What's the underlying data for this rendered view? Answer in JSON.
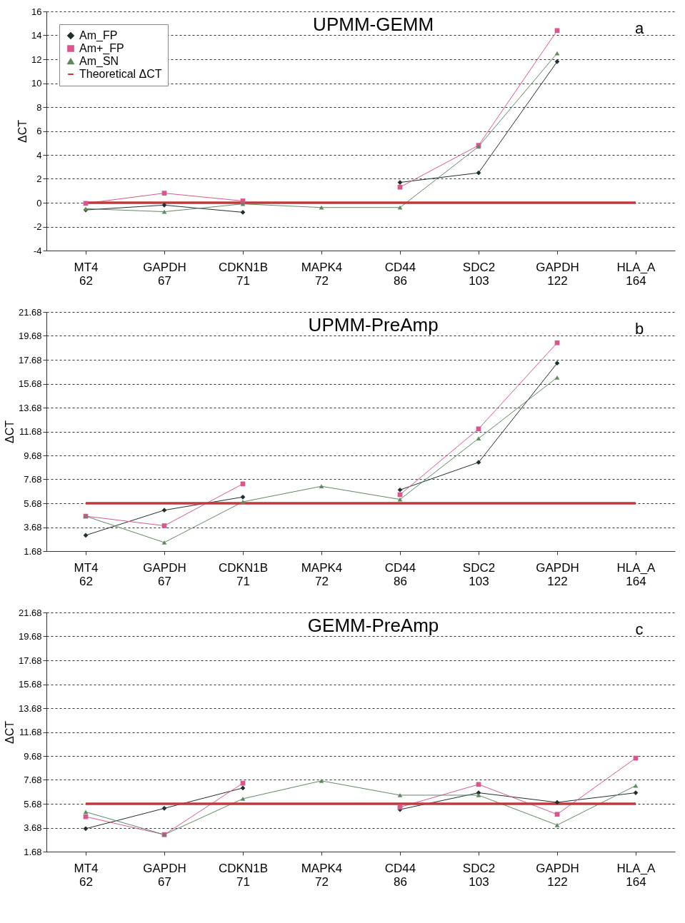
{
  "chart_data": [
    {
      "type": "line",
      "title": "UPMM-GEMM",
      "annotations": [
        "a"
      ],
      "ylabel": "ΔCT",
      "categories": [
        "MT4\n62",
        "GAPDH\n67",
        "CDKN1B\n71",
        "MAPK4\n72",
        "CD44\n86",
        "SDC2\n103",
        "GAPDH\n122",
        "HLA_A\n164"
      ],
      "ylim": [
        -4,
        16
      ],
      "yticks": [
        -4,
        -2,
        0,
        2,
        4,
        6,
        8,
        10,
        12,
        14,
        16
      ],
      "grid": "y",
      "legend": "top left",
      "series": [
        {
          "name": "Am_FP",
          "color": "#1f2f2f",
          "marker": "diamond",
          "values": [
            -0.6,
            -0.2,
            -0.8,
            null,
            1.7,
            2.5,
            11.8,
            null
          ]
        },
        {
          "name": "Am+_FP",
          "color": "#d9578f",
          "marker": "square",
          "values": [
            -0.05,
            0.8,
            0.15,
            null,
            1.3,
            4.8,
            14.4,
            null
          ]
        },
        {
          "name": "Am_SN",
          "color": "#5f8a5f",
          "marker": "triangle",
          "values": [
            -0.5,
            -0.75,
            -0.1,
            -0.4,
            -0.4,
            4.7,
            12.5,
            null
          ]
        },
        {
          "name": "Theoretical ΔCT",
          "color": "#c0393b",
          "marker": "none",
          "values": [
            0,
            0,
            0,
            0,
            0,
            0,
            0,
            0
          ]
        }
      ]
    },
    {
      "type": "line",
      "title": "UPMM-PreAmp",
      "annotations": [
        "b"
      ],
      "ylabel": "ΔCT",
      "categories": [
        "MT4\n62",
        "GAPDH\n67",
        "CDKN1B\n71",
        "MAPK4\n72",
        "CD44\n86",
        "SDC2\n103",
        "GAPDH\n122",
        "HLA_A\n164"
      ],
      "ylim": [
        1.68,
        21.68
      ],
      "yticks": [
        1.68,
        3.68,
        5.68,
        7.68,
        9.68,
        11.68,
        13.68,
        15.68,
        17.68,
        19.68,
        21.68
      ],
      "grid": "y",
      "legend": "top left",
      "series": [
        {
          "name": "Am_FP",
          "color": "#1f2f2f",
          "marker": "diamond",
          "values": [
            3.0,
            5.1,
            6.2,
            null,
            6.8,
            9.1,
            17.4,
            null
          ]
        },
        {
          "name": "Am+_FP",
          "color": "#d9578f",
          "marker": "square",
          "values": [
            4.6,
            3.8,
            7.3,
            null,
            6.4,
            11.9,
            19.1,
            null
          ]
        },
        {
          "name": "Am_SN",
          "color": "#5f8a5f",
          "marker": "triangle",
          "values": [
            4.6,
            2.4,
            5.8,
            7.1,
            6.0,
            11.1,
            16.2,
            null
          ]
        },
        {
          "name": "Theoretical ΔCT",
          "color": "#c0393b",
          "marker": "none",
          "values": [
            5.68,
            5.68,
            5.68,
            5.68,
            5.68,
            5.68,
            5.68,
            5.68
          ]
        }
      ]
    },
    {
      "type": "line",
      "title": "GEMM-PreAmp",
      "annotations": [
        "c"
      ],
      "ylabel": "ΔCT",
      "categories": [
        "MT4\n62",
        "GAPDH\n67",
        "CDKN1B\n71",
        "MAPK4\n72",
        "CD44\n86",
        "SDC2\n103",
        "GAPDH\n122",
        "HLA_A\n164"
      ],
      "ylim": [
        1.68,
        21.68
      ],
      "yticks": [
        1.68,
        3.68,
        5.68,
        7.68,
        9.68,
        11.68,
        13.68,
        15.68,
        17.68,
        19.68,
        21.68
      ],
      "grid": "y",
      "legend": "top left",
      "series": [
        {
          "name": "Am_FP",
          "color": "#1f2f2f",
          "marker": "diamond",
          "values": [
            3.6,
            5.3,
            7.0,
            null,
            5.2,
            6.6,
            5.8,
            6.6
          ]
        },
        {
          "name": "Am+_FP",
          "color": "#d9578f",
          "marker": "square",
          "values": [
            4.6,
            3.1,
            7.4,
            null,
            5.4,
            7.3,
            4.8,
            9.5
          ]
        },
        {
          "name": "Am_SN",
          "color": "#5f8a5f",
          "marker": "triangle",
          "values": [
            5.0,
            3.1,
            6.1,
            7.6,
            6.4,
            6.4,
            3.9,
            7.2
          ]
        },
        {
          "name": "Theoretical ΔCT",
          "color": "#c0393b",
          "marker": "none",
          "values": [
            5.68,
            5.68,
            5.68,
            5.68,
            5.68,
            5.68,
            5.68,
            5.68
          ]
        }
      ]
    }
  ]
}
